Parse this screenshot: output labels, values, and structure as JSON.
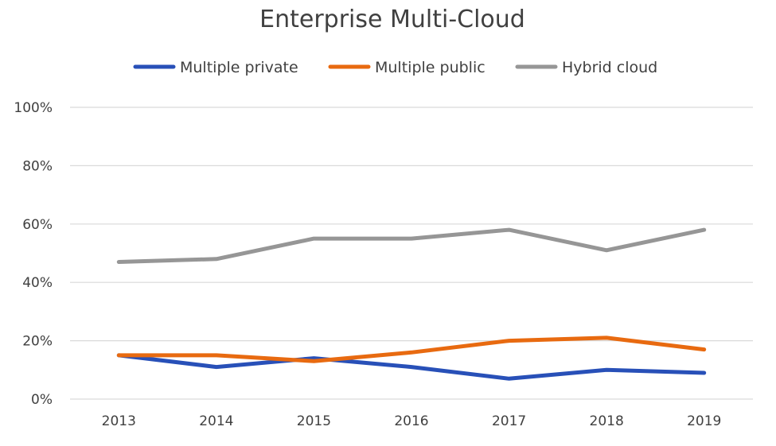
{
  "chart_data": {
    "type": "line",
    "title": "Enterprise Multi-Cloud",
    "categories": [
      "2013",
      "2014",
      "2015",
      "2016",
      "2017",
      "2018",
      "2019"
    ],
    "ylim": [
      0,
      100
    ],
    "y_ticks": [
      0,
      20,
      40,
      60,
      80,
      100
    ],
    "y_tick_labels": [
      "0%",
      "20%",
      "40%",
      "60%",
      "80%",
      "100%"
    ],
    "grid": true,
    "legend_position": "top",
    "series": [
      {
        "name": "Multiple private",
        "color": "#2850b8",
        "values": [
          15,
          11,
          14,
          11,
          7,
          10,
          9
        ]
      },
      {
        "name": "Multiple public",
        "color": "#e86a10",
        "values": [
          15,
          15,
          13,
          16,
          20,
          21,
          17
        ]
      },
      {
        "name": "Hybrid cloud",
        "color": "#969696",
        "values": [
          47,
          48,
          55,
          55,
          58,
          51,
          58
        ]
      }
    ]
  }
}
